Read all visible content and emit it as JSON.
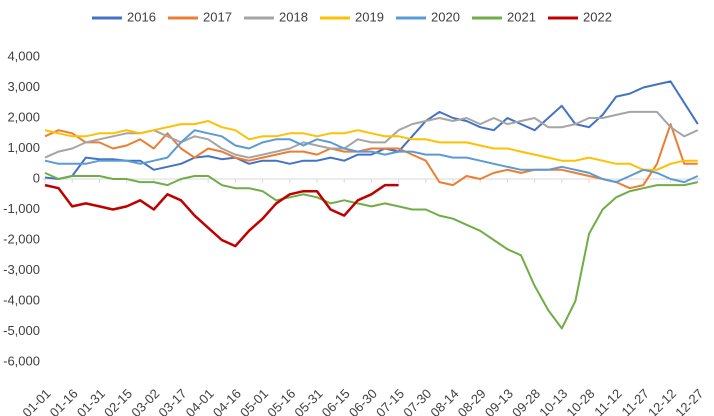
{
  "chart_data": {
    "type": "line",
    "categories": [
      "01-01",
      null,
      "01-16",
      null,
      "01-31",
      null,
      "02-15",
      null,
      "03-02",
      null,
      "03-17",
      null,
      "04-01",
      null,
      "04-16",
      null,
      "05-01",
      null,
      "05-16",
      null,
      "05-31",
      null,
      "06-15",
      null,
      "06-30",
      null,
      "07-15",
      null,
      "07-30",
      null,
      "08-14",
      null,
      "08-29",
      null,
      "09-13",
      null,
      "09-28",
      null,
      "10-13",
      null,
      "10-28",
      null,
      "11-12",
      null,
      "11-27",
      null,
      "12-12",
      null,
      "12-27"
    ],
    "ylim": [
      -6000,
      4000
    ],
    "yticks": [
      {
        "value": 4000,
        "label": "4,000"
      },
      {
        "value": 3000,
        "label": "3,000"
      },
      {
        "value": 2000,
        "label": "2,000"
      },
      {
        "value": 1000,
        "label": "1,000"
      },
      0,
      {
        "value": -1000,
        "label": "-1,000"
      },
      {
        "value": -2000,
        "label": "-2,000"
      },
      {
        "value": -3000,
        "label": "-3,000"
      },
      {
        "value": -4000,
        "label": "-4,000"
      },
      {
        "value": -5000,
        "label": "-5,000"
      },
      {
        "value": -6000,
        "label": "-6,000"
      }
    ],
    "series": [
      {
        "name": "2016",
        "color": "#4472c4",
        "values": [
          50,
          0,
          100,
          700,
          650,
          650,
          600,
          600,
          300,
          400,
          500,
          700,
          750,
          650,
          700,
          500,
          600,
          600,
          500,
          600,
          600,
          700,
          600,
          800,
          800,
          1000,
          900,
          1400,
          1900,
          2200,
          2000,
          1900,
          1700,
          1600,
          2000,
          1800,
          1600,
          2000,
          2400,
          1800,
          1700,
          2100,
          2700,
          2800,
          3000,
          3100,
          3200,
          2500,
          1800
        ]
      },
      {
        "name": "2017",
        "color": "#ed7d31",
        "values": [
          1400,
          1600,
          1500,
          1200,
          1200,
          1000,
          1100,
          1300,
          1000,
          1500,
          1000,
          700,
          1000,
          900,
          700,
          600,
          700,
          800,
          900,
          900,
          800,
          1000,
          900,
          900,
          1000,
          1000,
          1000,
          800,
          600,
          -100,
          -200,
          100,
          0,
          200,
          300,
          200,
          300,
          300,
          300,
          200,
          100,
          0,
          -100,
          -300,
          -200,
          500,
          1800,
          500,
          500
        ]
      },
      {
        "name": "2018",
        "color": "#a5a5a5",
        "values": [
          700,
          900,
          1000,
          1200,
          1300,
          1400,
          1500,
          1500,
          1600,
          1400,
          1200,
          1400,
          1300,
          1000,
          800,
          700,
          800,
          900,
          1000,
          1200,
          1100,
          1000,
          1000,
          1300,
          1200,
          1200,
          1600,
          1800,
          1900,
          2000,
          1900,
          2000,
          1800,
          2000,
          1800,
          1900,
          2000,
          1700,
          1700,
          1800,
          2000,
          2000,
          2100,
          2200,
          2200,
          2200,
          1700,
          1400,
          1600
        ]
      },
      {
        "name": "2019",
        "color": "#ffc000",
        "values": [
          1600,
          1500,
          1400,
          1400,
          1500,
          1500,
          1600,
          1500,
          1600,
          1700,
          1800,
          1800,
          1900,
          1700,
          1600,
          1300,
          1400,
          1400,
          1500,
          1500,
          1400,
          1500,
          1500,
          1600,
          1500,
          1400,
          1400,
          1300,
          1300,
          1200,
          1200,
          1200,
          1100,
          1000,
          1000,
          900,
          800,
          700,
          600,
          600,
          700,
          600,
          500,
          500,
          300,
          300,
          500,
          600,
          600
        ]
      },
      {
        "name": "2020",
        "color": "#5b9bd5",
        "values": [
          600,
          500,
          500,
          500,
          600,
          600,
          600,
          500,
          600,
          700,
          1200,
          1600,
          1500,
          1400,
          1100,
          1000,
          1200,
          1300,
          1300,
          1100,
          1300,
          1200,
          1000,
          900,
          900,
          800,
          900,
          900,
          800,
          800,
          700,
          700,
          600,
          500,
          400,
          300,
          300,
          300,
          400,
          300,
          200,
          0,
          -100,
          100,
          300,
          200,
          0,
          -100,
          100
        ]
      },
      {
        "name": "2021",
        "color": "#70ad47",
        "values": [
          200,
          0,
          100,
          100,
          100,
          0,
          0,
          -100,
          -100,
          -200,
          0,
          100,
          100,
          -200,
          -300,
          -300,
          -400,
          -700,
          -600,
          -500,
          -600,
          -800,
          -700,
          -800,
          -900,
          -800,
          -900,
          -1000,
          -1000,
          -1200,
          -1300,
          -1500,
          -1700,
          -2000,
          -2300,
          -2500,
          -3500,
          -4300,
          -4900,
          -4000,
          -1800,
          -1000,
          -600,
          -400,
          -300,
          -200,
          -200,
          -200,
          -100
        ]
      },
      {
        "name": "2022",
        "color": "#c00000",
        "values": [
          -200,
          -300,
          -900,
          -800,
          -900,
          -1000,
          -900,
          -700,
          -1000,
          -500,
          -700,
          -1200,
          -1600,
          -2000,
          -2200,
          -1700,
          -1300,
          -800,
          -500,
          -400,
          -400,
          -1000,
          -1200,
          -700,
          -500,
          -200,
          -200,
          null,
          null,
          null,
          null,
          null,
          null,
          null,
          null,
          null,
          null,
          null,
          null,
          null,
          null,
          null,
          null,
          null,
          null,
          null,
          null,
          null,
          null
        ]
      }
    ]
  }
}
